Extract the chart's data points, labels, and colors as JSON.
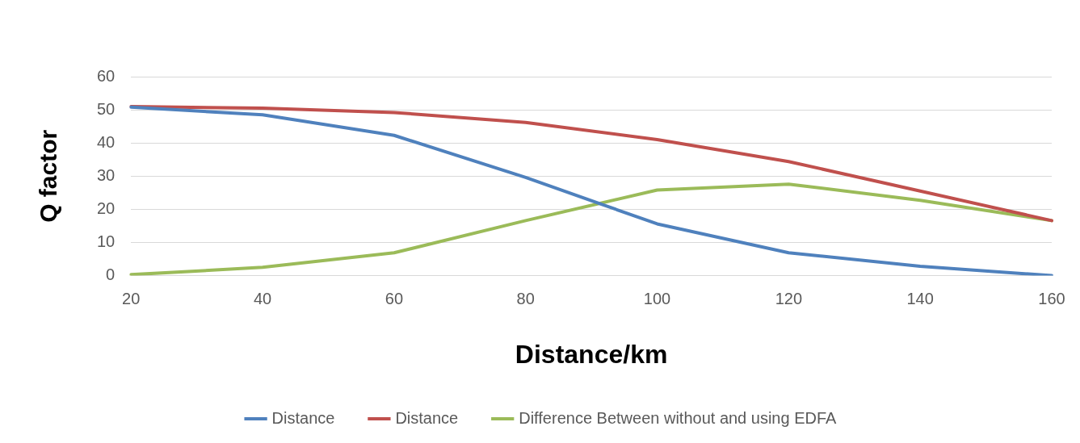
{
  "chart_data": {
    "type": "line",
    "xlabel": "Distance/km",
    "ylabel": "Q factor",
    "categories": [
      "20",
      "40",
      "60",
      "80",
      "100",
      "120",
      "140",
      "160"
    ],
    "series": [
      {
        "name": "Distance",
        "color": "#4f81bd",
        "values": [
          50.8,
          48.5,
          42.3,
          29.6,
          15.6,
          6.9,
          2.8,
          0
        ]
      },
      {
        "name": "Distance",
        "color": "#c0504d",
        "values": [
          51,
          50.5,
          49.2,
          46.2,
          41,
          34.4,
          25.5,
          16.6
        ]
      },
      {
        "name": "Difference Between without and using EDFA",
        "color": "#9bbb59",
        "values": [
          0.3,
          2.5,
          6.9,
          16.6,
          25.8,
          27.6,
          22.7,
          16.6
        ]
      }
    ],
    "ylim": [
      0,
      60
    ],
    "yticks": [
      0,
      10,
      20,
      30,
      40,
      50,
      60
    ],
    "grid": "y",
    "legend": "bottom",
    "marker": "none",
    "line_style": "solid"
  }
}
